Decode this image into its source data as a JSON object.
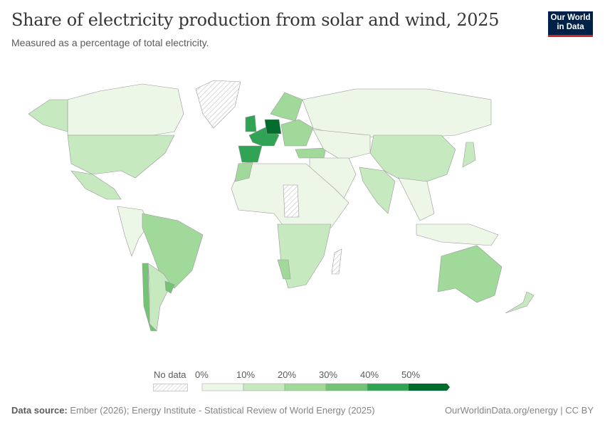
{
  "header": {
    "title": "Share of electricity production from solar and wind, 2025",
    "subtitle": "Measured as a percentage of total electricity.",
    "logo_line1": "Our World",
    "logo_line2": "in Data"
  },
  "legend": {
    "no_data_label": "No data",
    "ticks": [
      "0%",
      "10%",
      "20%",
      "30%",
      "40%",
      "50%"
    ],
    "colors": [
      "#edf7e8",
      "#c7e9c0",
      "#a1d99b",
      "#74c476",
      "#31a354",
      "#006d2c"
    ],
    "no_data_color": "#e6e6e6"
  },
  "map": {
    "regions": [
      {
        "id": "canada",
        "bin": 0
      },
      {
        "id": "alaska",
        "bin": 1
      },
      {
        "id": "greenland",
        "bin": null
      },
      {
        "id": "usa",
        "bin": 1
      },
      {
        "id": "mexico",
        "bin": 1
      },
      {
        "id": "south-america-north",
        "bin": 0
      },
      {
        "id": "brazil",
        "bin": 2
      },
      {
        "id": "argentina",
        "bin": 1
      },
      {
        "id": "chile",
        "bin": 3
      },
      {
        "id": "uruguay",
        "bin": 3
      },
      {
        "id": "iberia",
        "bin": 4
      },
      {
        "id": "western-europe",
        "bin": 4
      },
      {
        "id": "uk-ireland",
        "bin": 4
      },
      {
        "id": "germany-denmark",
        "bin": 5
      },
      {
        "id": "scandinavia",
        "bin": 2
      },
      {
        "id": "eastern-europe",
        "bin": 2
      },
      {
        "id": "turkey",
        "bin": 2
      },
      {
        "id": "russia",
        "bin": 0
      },
      {
        "id": "central-asia",
        "bin": 0
      },
      {
        "id": "middle-east",
        "bin": 0
      },
      {
        "id": "africa-north",
        "bin": 0
      },
      {
        "id": "morocco",
        "bin": 2
      },
      {
        "id": "sahara-nodata",
        "bin": null
      },
      {
        "id": "africa-south",
        "bin": 1
      },
      {
        "id": "namibia",
        "bin": 2
      },
      {
        "id": "china",
        "bin": 1
      },
      {
        "id": "india",
        "bin": 1
      },
      {
        "id": "southeast-asia",
        "bin": 0
      },
      {
        "id": "japan",
        "bin": 1
      },
      {
        "id": "indonesia",
        "bin": 0
      },
      {
        "id": "australia",
        "bin": 2
      },
      {
        "id": "new-zealand",
        "bin": 1
      },
      {
        "id": "madagascar",
        "bin": null
      }
    ]
  },
  "footer": {
    "source_label": "Data source:",
    "source_text": "Ember (2026); Energy Institute - Statistical Review of World Energy (2025)",
    "right": "OurWorldinData.org/energy | CC BY"
  }
}
